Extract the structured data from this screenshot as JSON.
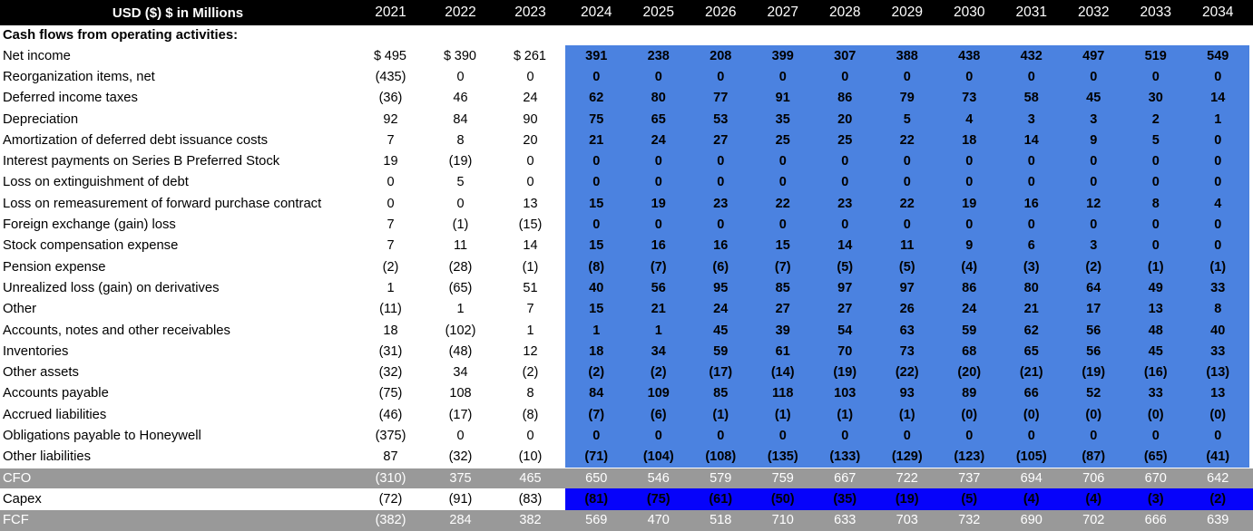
{
  "header": {
    "title": "USD ($) $ in Millions"
  },
  "section": {
    "label": "Cash flows from operating activities:"
  },
  "years": {
    "historical": [
      "2021",
      "2022",
      "2023"
    ],
    "projected": [
      "2024",
      "2025",
      "2026",
      "2027",
      "2028",
      "2029",
      "2030",
      "2031",
      "2032",
      "2033",
      "2034"
    ]
  },
  "rows": [
    {
      "label": "Net income",
      "hist": [
        "$ 495",
        "$ 390",
        "$ 261"
      ],
      "proj": [
        "391",
        "238",
        "208",
        "399",
        "307",
        "388",
        "438",
        "432",
        "497",
        "519",
        "549"
      ]
    },
    {
      "label": "Reorganization items, net",
      "hist": [
        "(435)",
        "0",
        "0"
      ],
      "proj": [
        "0",
        "0",
        "0",
        "0",
        "0",
        "0",
        "0",
        "0",
        "0",
        "0",
        "0"
      ]
    },
    {
      "label": "Deferred income taxes",
      "hist": [
        "(36)",
        "46",
        "24"
      ],
      "proj": [
        "62",
        "80",
        "77",
        "91",
        "86",
        "79",
        "73",
        "58",
        "45",
        "30",
        "14"
      ]
    },
    {
      "label": "Depreciation",
      "hist": [
        "92",
        "84",
        "90"
      ],
      "proj": [
        "75",
        "65",
        "53",
        "35",
        "20",
        "5",
        "4",
        "3",
        "3",
        "2",
        "1"
      ]
    },
    {
      "label": "Amortization of deferred debt issuance costs",
      "hist": [
        "7",
        "8",
        "20"
      ],
      "proj": [
        "21",
        "24",
        "27",
        "25",
        "25",
        "22",
        "18",
        "14",
        "9",
        "5",
        "0"
      ]
    },
    {
      "label": "Interest payments on Series B Preferred Stock",
      "hist": [
        "19",
        "(19)",
        "0"
      ],
      "proj": [
        "0",
        "0",
        "0",
        "0",
        "0",
        "0",
        "0",
        "0",
        "0",
        "0",
        "0"
      ]
    },
    {
      "label": "Loss on extinguishment of debt",
      "hist": [
        "0",
        "5",
        "0"
      ],
      "proj": [
        "0",
        "0",
        "0",
        "0",
        "0",
        "0",
        "0",
        "0",
        "0",
        "0",
        "0"
      ]
    },
    {
      "label": "Loss on remeasurement of forward purchase contract",
      "hist": [
        "0",
        "0",
        "13"
      ],
      "proj": [
        "15",
        "19",
        "23",
        "22",
        "23",
        "22",
        "19",
        "16",
        "12",
        "8",
        "4"
      ]
    },
    {
      "label": "Foreign exchange (gain) loss",
      "hist": [
        "7",
        "(1)",
        "(15)"
      ],
      "proj": [
        "0",
        "0",
        "0",
        "0",
        "0",
        "0",
        "0",
        "0",
        "0",
        "0",
        "0"
      ]
    },
    {
      "label": "Stock compensation expense",
      "hist": [
        "7",
        "11",
        "14"
      ],
      "proj": [
        "15",
        "16",
        "16",
        "15",
        "14",
        "11",
        "9",
        "6",
        "3",
        "0",
        "0"
      ]
    },
    {
      "label": "Pension expense",
      "hist": [
        "(2)",
        "(28)",
        "(1)"
      ],
      "proj": [
        "(8)",
        "(7)",
        "(6)",
        "(7)",
        "(5)",
        "(5)",
        "(4)",
        "(3)",
        "(2)",
        "(1)",
        "(1)"
      ]
    },
    {
      "label": "Unrealized loss (gain) on derivatives",
      "hist": [
        "1",
        "(65)",
        "51"
      ],
      "proj": [
        "40",
        "56",
        "95",
        "85",
        "97",
        "97",
        "86",
        "80",
        "64",
        "49",
        "33"
      ]
    },
    {
      "label": "Other",
      "hist": [
        "(11)",
        "1",
        "7"
      ],
      "proj": [
        "15",
        "21",
        "24",
        "27",
        "27",
        "26",
        "24",
        "21",
        "17",
        "13",
        "8"
      ]
    },
    {
      "label": "Accounts, notes and other receivables",
      "hist": [
        "18",
        "(102)",
        "1"
      ],
      "proj": [
        "1",
        "1",
        "45",
        "39",
        "54",
        "63",
        "59",
        "62",
        "56",
        "48",
        "40"
      ]
    },
    {
      "label": "Inventories",
      "hist": [
        "(31)",
        "(48)",
        "12"
      ],
      "proj": [
        "18",
        "34",
        "59",
        "61",
        "70",
        "73",
        "68",
        "65",
        "56",
        "45",
        "33"
      ]
    },
    {
      "label": "Other assets",
      "hist": [
        "(32)",
        "34",
        "(2)"
      ],
      "proj": [
        "(2)",
        "(2)",
        "(17)",
        "(14)",
        "(19)",
        "(22)",
        "(20)",
        "(21)",
        "(19)",
        "(16)",
        "(13)"
      ]
    },
    {
      "label": "Accounts payable",
      "hist": [
        "(75)",
        "108",
        "8"
      ],
      "proj": [
        "84",
        "109",
        "85",
        "118",
        "103",
        "93",
        "89",
        "66",
        "52",
        "33",
        "13"
      ]
    },
    {
      "label": "Accrued liabilities",
      "hist": [
        "(46)",
        "(17)",
        "(8)"
      ],
      "proj": [
        "(7)",
        "(6)",
        "(1)",
        "(1)",
        "(1)",
        "(1)",
        "(0)",
        "(0)",
        "(0)",
        "(0)",
        "(0)"
      ]
    },
    {
      "label": "Obligations payable to Honeywell",
      "hist": [
        "(375)",
        "0",
        "0"
      ],
      "proj": [
        "0",
        "0",
        "0",
        "0",
        "0",
        "0",
        "0",
        "0",
        "0",
        "0",
        "0"
      ]
    },
    {
      "label": "Other liabilities",
      "hist": [
        "87",
        "(32)",
        "(10)"
      ],
      "proj": [
        "(71)",
        "(104)",
        "(108)",
        "(135)",
        "(133)",
        "(129)",
        "(123)",
        "(105)",
        "(87)",
        "(65)",
        "(41)"
      ]
    }
  ],
  "totals": [
    {
      "label": "CFO",
      "style": "gray",
      "hist": [
        "(310)",
        "375",
        "465"
      ],
      "proj": [
        "650",
        "546",
        "579",
        "759",
        "667",
        "722",
        "737",
        "694",
        "706",
        "670",
        "642"
      ]
    },
    {
      "label": "Capex",
      "style": "capex",
      "hist": [
        "(72)",
        "(91)",
        "(83)"
      ],
      "proj": [
        "(81)",
        "(75)",
        "(61)",
        "(50)",
        "(35)",
        "(19)",
        "(5)",
        "(4)",
        "(4)",
        "(3)",
        "(2)"
      ]
    },
    {
      "label": "FCF",
      "style": "gray",
      "hist": [
        "(382)",
        "284",
        "382"
      ],
      "proj": [
        "569",
        "470",
        "518",
        "710",
        "633",
        "703",
        "732",
        "690",
        "702",
        "666",
        "639"
      ]
    }
  ],
  "colors": {
    "header_fill": "#000000",
    "projection_fill": "#4B82E0",
    "capex_fill": "#0603FA",
    "totals_fill": "#999999"
  }
}
